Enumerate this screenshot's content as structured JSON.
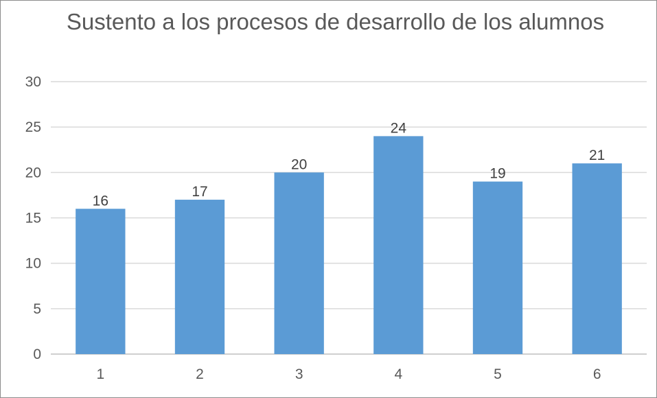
{
  "chart_data": {
    "type": "bar",
    "title": "Sustento a los procesos de desarrollo de los alumnos",
    "categories": [
      "1",
      "2",
      "3",
      "4",
      "5",
      "6"
    ],
    "values": [
      16,
      17,
      20,
      24,
      19,
      21
    ],
    "data_labels": [
      "16",
      "17",
      "20",
      "24",
      "19",
      "21"
    ],
    "xlabel": "",
    "ylabel": "",
    "ylim": [
      0,
      30
    ],
    "yticks": [
      "0",
      "5",
      "10",
      "15",
      "20",
      "25",
      "30"
    ],
    "grid": true,
    "legend": "none",
    "colors": {
      "bar": "#5B9BD5",
      "grid": "#d9d9d9",
      "text": "#595959"
    }
  }
}
